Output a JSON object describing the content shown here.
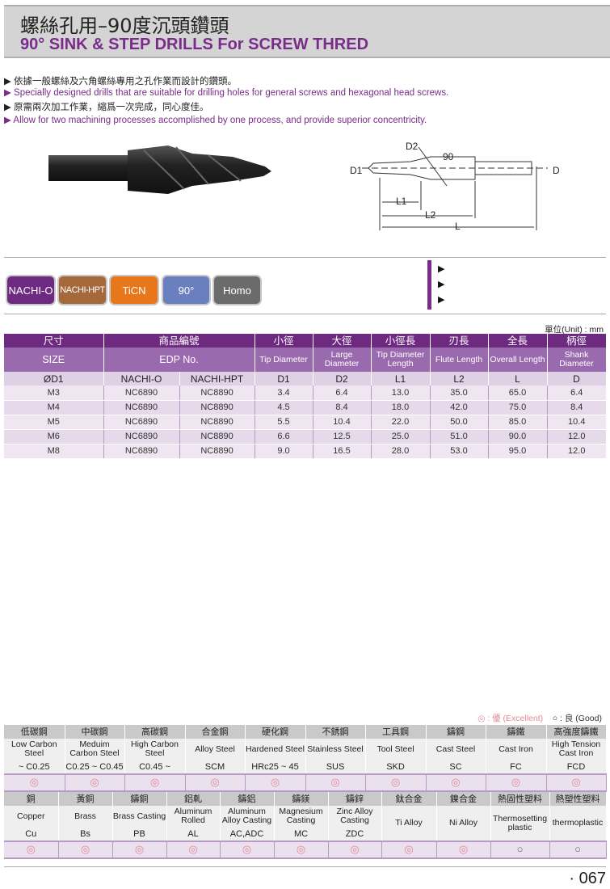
{
  "header": {
    "title_cn": "螺絲孔用–90度沉頭鑽頭",
    "title_en": "90° SINK & STEP DRILLS For SCREW THRED"
  },
  "bullets": [
    {
      "lang": "cn",
      "text": "▶ 依據一般螺絲及六角螺絲專用之孔作業而設計的鑽頭。"
    },
    {
      "lang": "en",
      "text": "▶ Specially designed drills that are suitable for drilling holes for general screws and hexagonal head screws."
    },
    {
      "lang": "cn",
      "text": "▶ 原需兩次加工作業，縮爲一次完成，同心度佳。"
    },
    {
      "lang": "en",
      "text": "▶ Allow for two machining processes accomplished by one process, and provide superior concentricity."
    }
  ],
  "diagram": {
    "d2": "D2",
    "angle": "90",
    "d1": "D1",
    "d": "D",
    "l1": "L1",
    "l2": "L2",
    "l": "L"
  },
  "badges": [
    {
      "label": "NACHI-O",
      "color": "#6e2a80"
    },
    {
      "label": "NACHI-HPT",
      "color": "#a5683a"
    },
    {
      "label": "TiCN",
      "color": "#e8761a"
    },
    {
      "label": "90°",
      "color": "#6a7fbd"
    },
    {
      "label": "Homo",
      "color": "#6b6b6b"
    }
  ],
  "side_bullets": [
    "▶",
    "▶",
    "▶"
  ],
  "spec": {
    "unit": "單位(Unit) : mm",
    "h1": [
      "尺寸",
      "商品編號",
      "小徑",
      "大徑",
      "小徑長",
      "刃長",
      "全長",
      "柄徑"
    ],
    "h2": [
      "SIZE",
      "EDP No.",
      "Tip Diameter",
      "Large Diameter",
      "Tip Diameter Length",
      "Flute Length",
      "Overall Length",
      "Shank Diameter"
    ],
    "h3": [
      "ØD1",
      "NACHI-O",
      "NACHI-HPT",
      "D1",
      "D2",
      "L1",
      "L2",
      "L",
      "D"
    ],
    "rows": [
      [
        "M3",
        "NC6890",
        "NC8890",
        "3.4",
        "6.4",
        "13.0",
        "35.0",
        "65.0",
        "6.4"
      ],
      [
        "M4",
        "NC6890",
        "NC8890",
        "4.5",
        "8.4",
        "18.0",
        "42.0",
        "75.0",
        "8.4"
      ],
      [
        "M5",
        "NC6890",
        "NC8890",
        "5.5",
        "10.4",
        "22.0",
        "50.0",
        "85.0",
        "10.4"
      ],
      [
        "M6",
        "NC6890",
        "NC8890",
        "6.6",
        "12.5",
        "25.0",
        "51.0",
        "90.0",
        "12.0"
      ],
      [
        "M8",
        "NC6890",
        "NC8890",
        "9.0",
        "16.5",
        "28.0",
        "53.0",
        "95.0",
        "12.0"
      ]
    ]
  },
  "legend": {
    "excellent": "◎ : 優 (Excellent)",
    "good": "○ : 良 (Good)"
  },
  "materials1": {
    "cn": [
      "低碳鋼",
      "中碳鋼",
      "高碳鋼",
      "合金鋼",
      "硬化鋼",
      "不銹鋼",
      "工具鋼",
      "鑄鋼",
      "鑄鐵",
      "高強度鑄鐵"
    ],
    "en": [
      "Low Carbon Steel",
      "Meduim Carbon Steel",
      "High Carbon Steel",
      "Alloy Steel",
      "Hardened Steel",
      "Stainless Steel",
      "Tool Steel",
      "Cast Steel",
      "Cast Iron",
      "High Tension Cast Iron"
    ],
    "code": [
      "~ C0.25",
      "C0.25 ~ C0.45",
      "C0.45 ~",
      "SCM",
      "HRc25 ~ 45",
      "SUS",
      "SKD",
      "SC",
      "FC",
      "FCD"
    ],
    "rating": [
      "◎",
      "◎",
      "◎",
      "◎",
      "◎",
      "◎",
      "◎",
      "◎",
      "◎",
      "◎"
    ]
  },
  "materials2": {
    "cn": [
      "銅",
      "黃銅",
      "鑄銅",
      "鋁軋",
      "鑄鋁",
      "鑄鎂",
      "鑄鋅",
      "鈦合金",
      "鎳合金",
      "熱固性塑料",
      "熱塑性塑料"
    ],
    "en": [
      "Copper",
      "Brass",
      "Brass Casting",
      "Aluminum Rolled",
      "Aluminum Alloy Casting",
      "Magnesium Casting",
      "Zinc Alloy Casting",
      "Ti Alloy",
      "Ni Alloy",
      "Thermosetting plastic",
      "thermoplastic"
    ],
    "code": [
      "Cu",
      "Bs",
      "PB",
      "AL",
      "AC,ADC",
      "MC",
      "ZDC"
    ],
    "rating": [
      "◎",
      "◎",
      "◎",
      "◎",
      "◎",
      "◎",
      "◎",
      "◎",
      "◎",
      "○",
      "○"
    ]
  },
  "page_number": "· 067"
}
